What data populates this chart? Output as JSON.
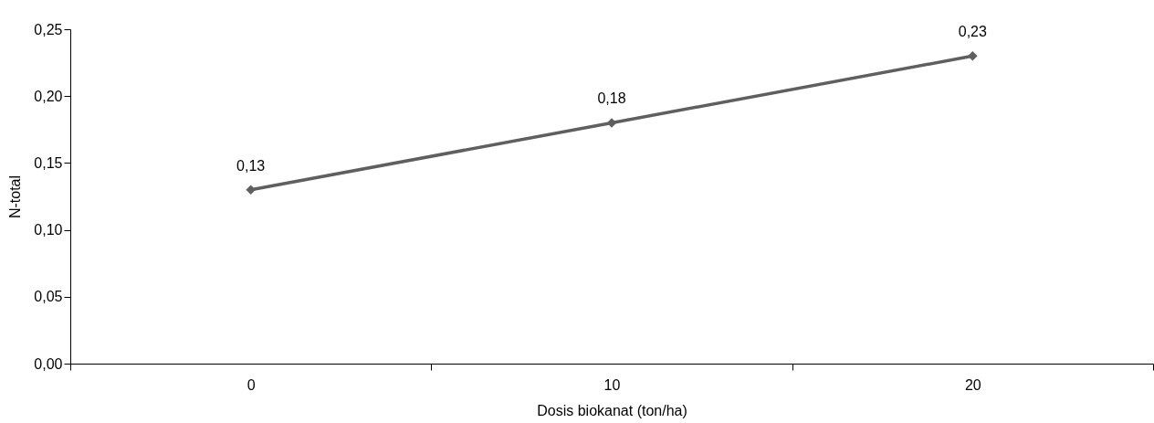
{
  "chart_data": {
    "type": "line",
    "xlabel": "Dosis biokanat (ton/ha)",
    "ylabel": "N-total",
    "categories": [
      "0",
      "10",
      "20"
    ],
    "series": [
      {
        "color": "#5f5f5f",
        "values": [
          0.13,
          0.18,
          0.23
        ],
        "value_labels": [
          "0,13",
          "0,18",
          "0,23"
        ]
      }
    ],
    "ylim": [
      0,
      0.25
    ],
    "yticks": [
      {
        "value": 0,
        "label": "0,00"
      },
      {
        "value": 0.05,
        "label": "0,05"
      },
      {
        "value": 0.1,
        "label": "0,10"
      },
      {
        "value": 0.15,
        "label": "0,15"
      },
      {
        "value": 0.2,
        "label": "0,20"
      },
      {
        "value": 0.25,
        "label": "0,25"
      }
    ],
    "marker": "diamond",
    "line_style": "solid",
    "grid": false
  }
}
